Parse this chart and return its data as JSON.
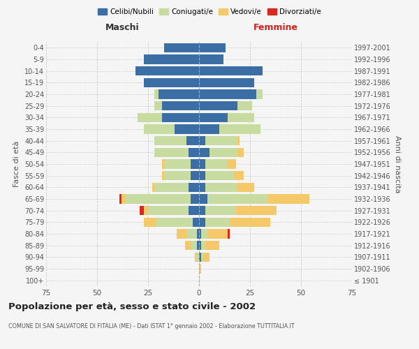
{
  "age_groups": [
    "100+",
    "95-99",
    "90-94",
    "85-89",
    "80-84",
    "75-79",
    "70-74",
    "65-69",
    "60-64",
    "55-59",
    "50-54",
    "45-49",
    "40-44",
    "35-39",
    "30-34",
    "25-29",
    "20-24",
    "15-19",
    "10-14",
    "5-9",
    "0-4"
  ],
  "birth_years": [
    "≤ 1901",
    "1902-1906",
    "1907-1911",
    "1912-1916",
    "1917-1921",
    "1922-1926",
    "1927-1931",
    "1932-1936",
    "1937-1941",
    "1942-1946",
    "1947-1951",
    "1952-1956",
    "1957-1961",
    "1962-1966",
    "1967-1971",
    "1972-1976",
    "1977-1981",
    "1982-1986",
    "1987-1991",
    "1992-1996",
    "1997-2001"
  ],
  "male": {
    "celibi": [
      0,
      0,
      0,
      1,
      1,
      3,
      5,
      4,
      5,
      4,
      4,
      5,
      6,
      12,
      18,
      18,
      20,
      27,
      31,
      27,
      17
    ],
    "coniugati": [
      0,
      0,
      1,
      3,
      5,
      18,
      20,
      32,
      17,
      13,
      13,
      17,
      16,
      15,
      12,
      4,
      2,
      0,
      0,
      0,
      0
    ],
    "vedovi": [
      0,
      0,
      1,
      3,
      5,
      6,
      2,
      2,
      1,
      1,
      1,
      0,
      0,
      0,
      0,
      0,
      0,
      0,
      0,
      0,
      0
    ],
    "divorziati": [
      0,
      0,
      0,
      0,
      0,
      0,
      2,
      1,
      0,
      0,
      0,
      0,
      0,
      0,
      0,
      0,
      0,
      0,
      0,
      0,
      0
    ]
  },
  "female": {
    "nubili": [
      0,
      0,
      1,
      1,
      1,
      3,
      3,
      4,
      3,
      3,
      3,
      5,
      3,
      10,
      14,
      19,
      28,
      27,
      31,
      12,
      13
    ],
    "coniugate": [
      0,
      0,
      1,
      2,
      3,
      12,
      15,
      30,
      16,
      14,
      11,
      14,
      16,
      20,
      13,
      7,
      3,
      0,
      0,
      0,
      0
    ],
    "vedove": [
      0,
      1,
      3,
      7,
      10,
      20,
      20,
      20,
      8,
      5,
      4,
      3,
      1,
      0,
      0,
      0,
      0,
      0,
      0,
      0,
      0
    ],
    "divorziate": [
      0,
      0,
      0,
      0,
      1,
      0,
      0,
      0,
      0,
      0,
      0,
      0,
      0,
      0,
      0,
      0,
      0,
      0,
      0,
      0,
      0
    ]
  },
  "colors": {
    "celibi_nubili": "#3a6ea5",
    "coniugati": "#c8dba0",
    "vedovi": "#f5c96a",
    "divorziati": "#d9291c"
  },
  "xlim": 75,
  "title": "Popolazione per età, sesso e stato civile - 2002",
  "subtitle": "COMUNE DI SAN SALVATORE DI FITALIA (ME) - Dati ISTAT 1° gennaio 2002 - Elaborazione TUTTITALIA.IT",
  "ylabel_left": "Fasce di età",
  "ylabel_right": "Anni di nascita",
  "xlabel_male": "Maschi",
  "xlabel_female": "Femmine",
  "legend_labels": [
    "Celibi/Nubili",
    "Coniugati/e",
    "Vedovi/e",
    "Divorziati/e"
  ],
  "background_color": "#f5f5f5",
  "grid_color": "#cccccc"
}
